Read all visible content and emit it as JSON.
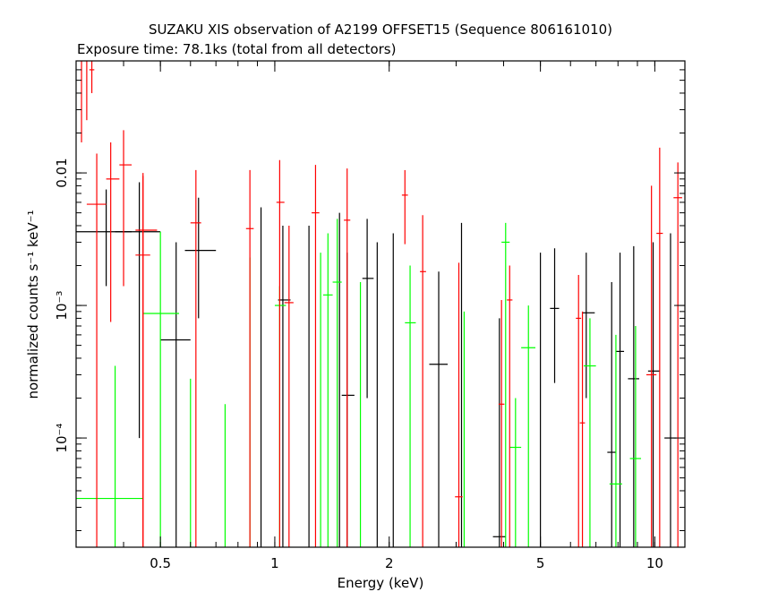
{
  "chart_data": {
    "type": "scatter",
    "title": "SUZAKU XIS observation of A2199 OFFSET15 (Sequence 806161010)",
    "subtitle": "Exposure time: 78.1ks (total from all detectors)",
    "xlabel": "Energy (keV)",
    "ylabel": "normalized counts s⁻¹ keV⁻¹",
    "x_scale": "log",
    "y_scale": "log",
    "xlim": [
      0.3,
      12
    ],
    "ylim": [
      1.5e-05,
      0.07
    ],
    "x_ticks": [
      {
        "value": 0.5,
        "label": "0.5"
      },
      {
        "value": 1,
        "label": "1"
      },
      {
        "value": 2,
        "label": "2"
      },
      {
        "value": 5,
        "label": "5"
      },
      {
        "value": 10,
        "label": "10"
      }
    ],
    "y_ticks": [
      {
        "value": 0.01,
        "label": "0.01"
      },
      {
        "value": 0.001,
        "label": "10⁻³"
      },
      {
        "value": 0.0001,
        "label": "10⁻⁴"
      }
    ],
    "series": [
      {
        "color": "#000000",
        "points": [
          {
            "x": 0.36,
            "xlo": 0.3,
            "xhi": 0.42,
            "y": 0.0036,
            "ylo": 0.0014,
            "yhi": 0.0075
          },
          {
            "x": 0.44,
            "xlo": 0.38,
            "xhi": 0.5,
            "y": 0.0036,
            "ylo": 0.0001,
            "yhi": 0.0085
          },
          {
            "x": 0.55,
            "xlo": 0.5,
            "xhi": 0.6,
            "y": 0.00055,
            "ylo": 1.5e-05,
            "yhi": 0.003
          },
          {
            "x": 0.63,
            "xlo": 0.58,
            "xhi": 0.7,
            "y": 0.0026,
            "ylo": 0.0008,
            "yhi": 0.0065
          },
          {
            "x": 0.92,
            "y": 0.0015,
            "ylo": 1.5e-05,
            "yhi": 0.0055
          },
          {
            "x": 1.05,
            "xlo": 1.02,
            "xhi": 1.1,
            "y": 0.0011,
            "ylo": 1.5e-05,
            "yhi": 0.004
          },
          {
            "x": 1.23,
            "y": 0.0013,
            "ylo": 1.5e-05,
            "yhi": 0.004
          },
          {
            "x": 1.48,
            "y": 0.0015,
            "ylo": 1.5e-05,
            "yhi": 0.005
          },
          {
            "x": 1.55,
            "xlo": 1.5,
            "xhi": 1.62,
            "y": 0.00021,
            "ylo": 1.5e-05,
            "yhi": 0.0025
          },
          {
            "x": 1.75,
            "xlo": 1.7,
            "xhi": 1.82,
            "y": 0.0016,
            "ylo": 0.0002,
            "yhi": 0.0045
          },
          {
            "x": 1.86,
            "y": 0.0009,
            "ylo": 1.5e-05,
            "yhi": 0.003
          },
          {
            "x": 2.05,
            "y": 0.0011,
            "ylo": 1.5e-05,
            "yhi": 0.0035
          },
          {
            "x": 2.7,
            "xlo": 2.55,
            "xhi": 2.85,
            "y": 0.00036,
            "ylo": 1.5e-05,
            "yhi": 0.0018
          },
          {
            "x": 3.1,
            "y": 0.0012,
            "ylo": 1.5e-05,
            "yhi": 0.0042
          },
          {
            "x": 3.9,
            "xlo": 3.75,
            "xhi": 4.05,
            "y": 1.8e-05,
            "ylo": 1.5e-05,
            "yhi": 0.0008
          },
          {
            "x": 5.0,
            "y": 0.0007,
            "ylo": 1.5e-05,
            "yhi": 0.0025
          },
          {
            "x": 5.45,
            "xlo": 5.3,
            "xhi": 5.6,
            "y": 0.00095,
            "ylo": 0.00026,
            "yhi": 0.0027
          },
          {
            "x": 6.6,
            "xlo": 6.45,
            "xhi": 6.95,
            "y": 0.00088,
            "ylo": 0.0002,
            "yhi": 0.0025
          },
          {
            "x": 7.7,
            "xlo": 7.5,
            "xhi": 7.9,
            "y": 7.8e-05,
            "ylo": 1.5e-05,
            "yhi": 0.0015
          },
          {
            "x": 8.1,
            "xlo": 7.9,
            "xhi": 8.3,
            "y": 0.00045,
            "ylo": 1.5e-05,
            "yhi": 0.0025
          },
          {
            "x": 8.8,
            "xlo": 8.5,
            "xhi": 9.1,
            "y": 0.00028,
            "ylo": 1.5e-05,
            "yhi": 0.0028
          },
          {
            "x": 9.9,
            "xlo": 9.6,
            "xhi": 10.3,
            "y": 0.00032,
            "ylo": 1.5e-05,
            "yhi": 0.003
          },
          {
            "x": 11.0,
            "xlo": 10.6,
            "xhi": 11.4,
            "y": 0.0001,
            "ylo": 1.5e-05,
            "yhi": 0.0035
          }
        ]
      },
      {
        "color": "#00ff00",
        "points": [
          {
            "x": 0.38,
            "xlo": 0.3,
            "xhi": 0.45,
            "y": 3.5e-05,
            "ylo": 1.5e-05,
            "yhi": 0.00035
          },
          {
            "x": 0.5,
            "xlo": 0.45,
            "xhi": 0.56,
            "y": 0.00087,
            "ylo": 1.5e-05,
            "yhi": 0.0036
          },
          {
            "x": 0.6,
            "y": 0.00025,
            "ylo": 1.5e-05,
            "yhi": 0.00028
          },
          {
            "x": 0.74,
            "y": 0.0001,
            "ylo": 1.5e-05,
            "yhi": 0.00018
          },
          {
            "x": 0.86,
            "y": 0.0005,
            "ylo": 1.5e-05,
            "yhi": 0.0023
          },
          {
            "x": 1.03,
            "xlo": 1.0,
            "xhi": 1.07,
            "y": 0.001,
            "ylo": 1.5e-05,
            "yhi": 0.0014
          },
          {
            "x": 1.32,
            "y": 0.0006,
            "ylo": 1.5e-05,
            "yhi": 0.0025
          },
          {
            "x": 1.38,
            "xlo": 1.34,
            "xhi": 1.42,
            "y": 0.0012,
            "ylo": 1.5e-05,
            "yhi": 0.0035
          },
          {
            "x": 1.46,
            "xlo": 1.42,
            "xhi": 1.5,
            "y": 0.0015,
            "ylo": 1.5e-05,
            "yhi": 0.0045
          },
          {
            "x": 1.68,
            "y": 0.0004,
            "ylo": 1.5e-05,
            "yhi": 0.0015
          },
          {
            "x": 2.27,
            "xlo": 2.2,
            "xhi": 2.35,
            "y": 0.00074,
            "ylo": 1.5e-05,
            "yhi": 0.002
          },
          {
            "x": 3.15,
            "y": 0.0003,
            "ylo": 1.5e-05,
            "yhi": 0.0009
          },
          {
            "x": 4.05,
            "xlo": 3.95,
            "xhi": 4.15,
            "y": 0.003,
            "ylo": 1.5e-05,
            "yhi": 0.0042
          },
          {
            "x": 4.3,
            "xlo": 4.15,
            "xhi": 4.45,
            "y": 8.5e-05,
            "ylo": 1.5e-05,
            "yhi": 0.0002
          },
          {
            "x": 4.65,
            "xlo": 4.45,
            "xhi": 4.85,
            "y": 0.00048,
            "ylo": 1.5e-05,
            "yhi": 0.001
          },
          {
            "x": 6.75,
            "xlo": 6.5,
            "xhi": 7.0,
            "y": 0.00035,
            "ylo": 1.5e-05,
            "yhi": 0.0008
          },
          {
            "x": 7.9,
            "xlo": 7.6,
            "xhi": 8.2,
            "y": 4.5e-05,
            "ylo": 1.5e-05,
            "yhi": 0.0006
          },
          {
            "x": 8.9,
            "xlo": 8.6,
            "xhi": 9.2,
            "y": 7e-05,
            "ylo": 1.5e-05,
            "yhi": 0.0007
          }
        ]
      },
      {
        "color": "#ff0000",
        "points": [
          {
            "x": 0.31,
            "y": 0.05,
            "ylo": 0.017,
            "yhi": 0.07
          },
          {
            "x": 0.32,
            "y": 0.04,
            "ylo": 0.025,
            "yhi": 0.07
          },
          {
            "x": 0.33,
            "xlo": 0.325,
            "xhi": 0.335,
            "y": 0.06,
            "ylo": 0.04,
            "yhi": 0.07
          },
          {
            "x": 0.34,
            "xlo": 0.32,
            "xhi": 0.36,
            "y": 0.0058,
            "ylo": 1.5e-05,
            "yhi": 0.014
          },
          {
            "x": 0.37,
            "xlo": 0.36,
            "xhi": 0.39,
            "y": 0.009,
            "ylo": 0.00075,
            "yhi": 0.017
          },
          {
            "x": 0.4,
            "xlo": 0.39,
            "xhi": 0.42,
            "y": 0.0115,
            "ylo": 0.0014,
            "yhi": 0.021
          },
          {
            "x": 0.45,
            "xlo": 0.43,
            "xhi": 0.47,
            "y": 0.0024,
            "ylo": 1.5e-05,
            "yhi": 0.0095
          },
          {
            "x": 0.45,
            "xlo": 0.43,
            "xhi": 0.49,
            "y": 0.0037,
            "ylo": 1.5e-05,
            "yhi": 0.01
          },
          {
            "x": 0.62,
            "xlo": 0.6,
            "xhi": 0.64,
            "y": 0.0042,
            "ylo": 1.5e-05,
            "yhi": 0.0105
          },
          {
            "x": 0.86,
            "xlo": 0.84,
            "xhi": 0.88,
            "y": 0.0038,
            "ylo": 1.5e-05,
            "yhi": 0.0105
          },
          {
            "x": 1.03,
            "xlo": 1.01,
            "xhi": 1.06,
            "y": 0.006,
            "ylo": 1.5e-05,
            "yhi": 0.0125
          },
          {
            "x": 1.09,
            "xlo": 1.06,
            "xhi": 1.12,
            "y": 0.00105,
            "ylo": 1.5e-05,
            "yhi": 0.004
          },
          {
            "x": 1.28,
            "xlo": 1.25,
            "xhi": 1.31,
            "y": 0.005,
            "ylo": 1.5e-05,
            "yhi": 0.0115
          },
          {
            "x": 1.55,
            "xlo": 1.52,
            "xhi": 1.58,
            "y": 0.0044,
            "ylo": 1.5e-05,
            "yhi": 0.0108
          },
          {
            "x": 2.2,
            "xlo": 2.16,
            "xhi": 2.24,
            "y": 0.0068,
            "ylo": 0.0029,
            "yhi": 0.0105
          },
          {
            "x": 2.45,
            "xlo": 2.41,
            "xhi": 2.5,
            "y": 0.0018,
            "ylo": 1.5e-05,
            "yhi": 0.0048
          },
          {
            "x": 3.05,
            "xlo": 2.98,
            "xhi": 3.12,
            "y": 3.6e-05,
            "ylo": 1.5e-05,
            "yhi": 0.0021
          },
          {
            "x": 3.95,
            "xlo": 3.88,
            "xhi": 4.02,
            "y": 0.00018,
            "ylo": 1.5e-05,
            "yhi": 0.0011
          },
          {
            "x": 4.15,
            "xlo": 4.08,
            "xhi": 4.22,
            "y": 0.0011,
            "ylo": 1.5e-05,
            "yhi": 0.002
          },
          {
            "x": 6.45,
            "xlo": 6.35,
            "xhi": 6.55,
            "y": 0.00013,
            "ylo": 1.5e-05,
            "yhi": 0.0009
          },
          {
            "x": 6.3,
            "xlo": 6.2,
            "xhi": 6.4,
            "y": 0.0008,
            "ylo": 1.5e-05,
            "yhi": 0.0017
          },
          {
            "x": 9.8,
            "xlo": 9.5,
            "xhi": 10.1,
            "y": 0.0003,
            "ylo": 1.5e-05,
            "yhi": 0.008
          },
          {
            "x": 10.3,
            "xlo": 10.1,
            "xhi": 10.5,
            "y": 0.0035,
            "ylo": 1.5e-05,
            "yhi": 0.0155
          },
          {
            "x": 11.5,
            "xlo": 11.2,
            "xhi": 11.8,
            "y": 0.0065,
            "ylo": 1.5e-05,
            "yhi": 0.012
          }
        ]
      }
    ]
  }
}
